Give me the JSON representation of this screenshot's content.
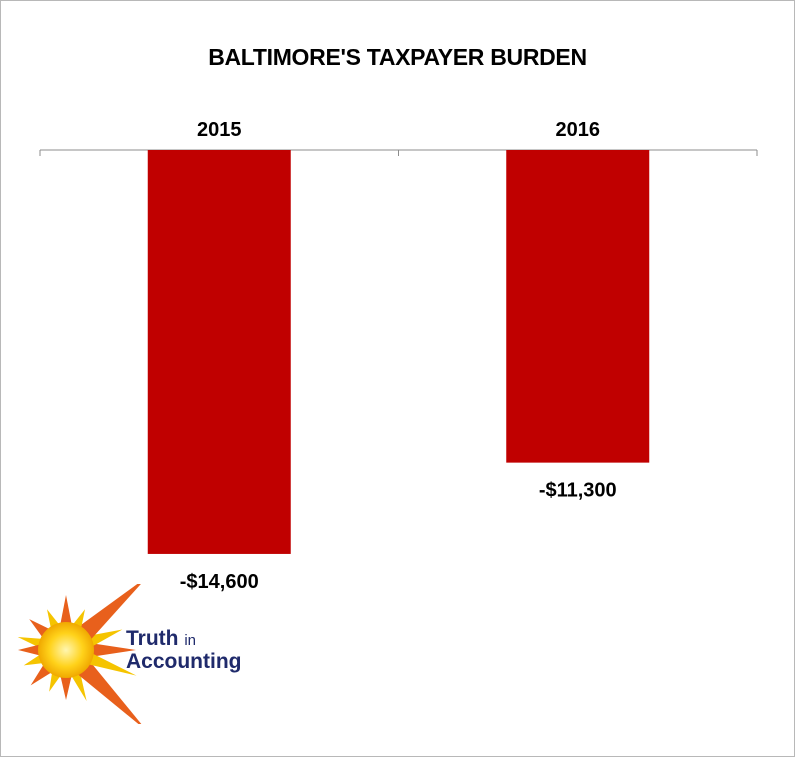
{
  "chart_data": {
    "type": "bar",
    "title": "BALTIMORE'S TAXPAYER BURDEN",
    "categories": [
      "2015",
      "2016"
    ],
    "values": [
      -14600,
      -11300
    ],
    "value_labels": [
      "-$14,600",
      "-$11,300"
    ],
    "xlabel": "",
    "ylabel": "",
    "ylim": [
      -15000,
      0
    ],
    "grid": false,
    "legend": "none",
    "x_axis_position": "top",
    "bar_color": "#c00000"
  },
  "logo": {
    "line1_main": "Truth",
    "line1_small": "in",
    "line2": "Accounting",
    "text_color": "#1f2a6b",
    "sun_color": "#f5c400",
    "ray_color": "#e8601c"
  }
}
